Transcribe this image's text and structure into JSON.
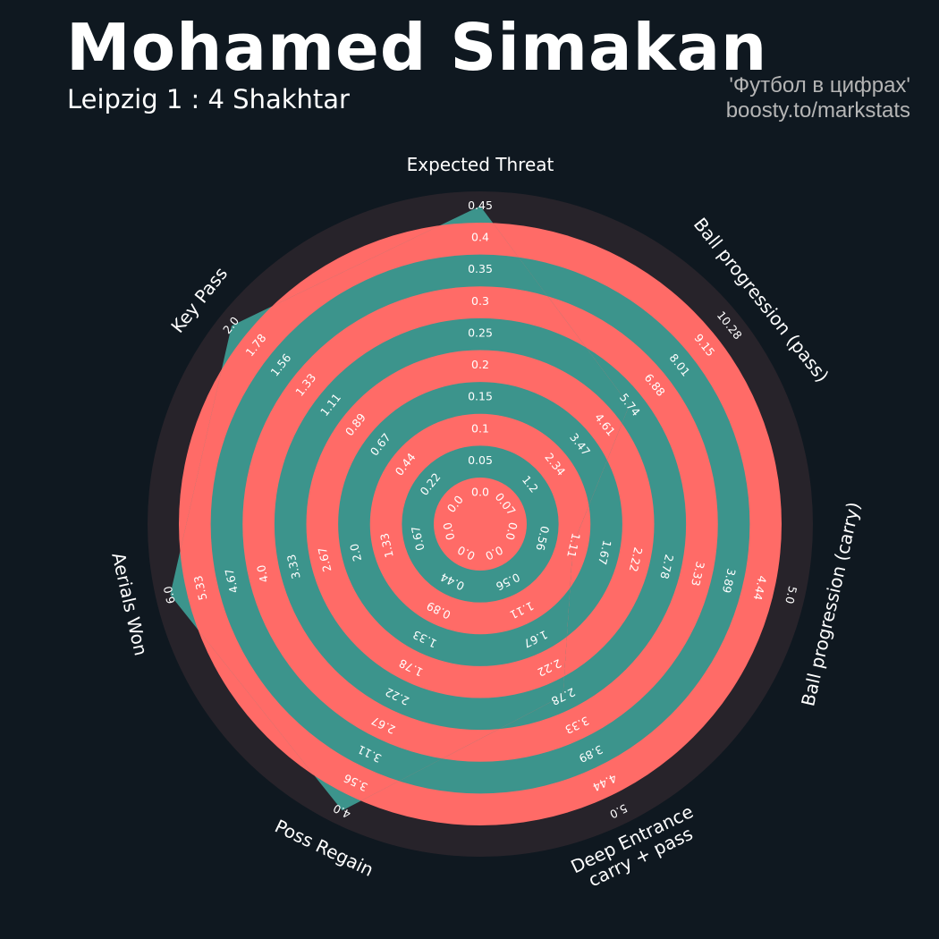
{
  "header": {
    "title": "Mohamed Simakan",
    "subtitle": "Leipzig 1 : 4 Shakhtar",
    "credit_line1": "'Футбол в цифрах'",
    "credit_line2": "boosty.to/markstats"
  },
  "colors": {
    "background": "#0f1820",
    "ring_a": "#ff6b67",
    "ring_b": "#3c948c",
    "outer_ring": "#27232a",
    "polygon": "#3c948c"
  },
  "chart_data": {
    "type": "radar",
    "parameters": [
      {
        "label": [
          "Expected Threat"
        ],
        "value": 0.45,
        "ticks": [
          "0.0",
          "0.05",
          "0.1",
          "0.15",
          "0.2",
          "0.25",
          "0.3",
          "0.35",
          "0.4",
          "0.45"
        ]
      },
      {
        "label": [
          "Ball progression (pass)"
        ],
        "value": 5.74,
        "ticks": [
          "0.07",
          "1.2",
          "2.34",
          "3.47",
          "4.61",
          "5.74",
          "6.88",
          "8.01",
          "9.15",
          "10.28"
        ]
      },
      {
        "label": [
          "Ball progression (carry)"
        ],
        "value": 1.11,
        "ticks": [
          "0.0",
          "0.56",
          "1.11",
          "1.67",
          "2.22",
          "2.78",
          "3.33",
          "3.89",
          "4.44",
          "5.0"
        ]
      },
      {
        "label": [
          "Deep Entrance",
          "carry + pass"
        ],
        "value": 2.78,
        "ticks": [
          "0.0",
          "0.56",
          "1.11",
          "1.67",
          "2.22",
          "2.78",
          "3.33",
          "3.89",
          "4.44",
          "5.0"
        ]
      },
      {
        "label": [
          "Poss Regain"
        ],
        "value": 4.0,
        "ticks": [
          "0.0",
          "0.44",
          "0.89",
          "1.33",
          "1.78",
          "2.22",
          "2.67",
          "3.11",
          "3.56",
          "4.0"
        ]
      },
      {
        "label": [
          "Aerials Won"
        ],
        "value": 6.0,
        "ticks": [
          "0.0",
          "0.67",
          "1.33",
          "2.0",
          "2.67",
          "3.33",
          "4.0",
          "4.67",
          "5.33",
          "6.0"
        ]
      },
      {
        "label": [
          "Key Pass"
        ],
        "value": 2.0,
        "ticks": [
          "0.0",
          "0.22",
          "0.44",
          "0.67",
          "0.89",
          "1.11",
          "1.33",
          "1.56",
          "1.78",
          "2.0"
        ]
      }
    ]
  }
}
